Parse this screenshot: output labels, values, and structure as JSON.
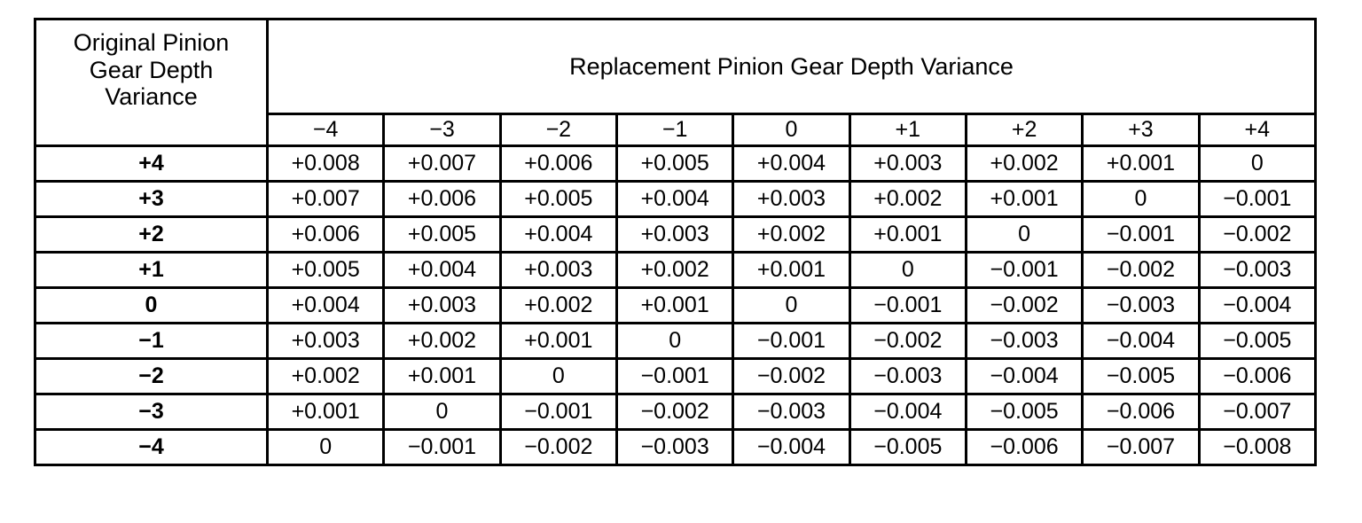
{
  "colors": {
    "ink": "#000000",
    "paper": "#ffffff"
  },
  "table": {
    "row_axis_title": "Original Pinion\nGear Depth\nVariance",
    "col_axis_title": "Replacement Pinion Gear Depth Variance",
    "column_headers": [
      "−4",
      "−3",
      "−2",
      "−1",
      "0",
      "+1",
      "+2",
      "+3",
      "+4"
    ],
    "rows": [
      {
        "header": "+4",
        "cells": [
          "+0.008",
          "+0.007",
          "+0.006",
          "+0.005",
          "+0.004",
          "+0.003",
          "+0.002",
          "+0.001",
          "0"
        ]
      },
      {
        "header": "+3",
        "cells": [
          "+0.007",
          "+0.006",
          "+0.005",
          "+0.004",
          "+0.003",
          "+0.002",
          "+0.001",
          "0",
          "−0.001"
        ]
      },
      {
        "header": "+2",
        "cells": [
          "+0.006",
          "+0.005",
          "+0.004",
          "+0.003",
          "+0.002",
          "+0.001",
          "0",
          "−0.001",
          "−0.002"
        ]
      },
      {
        "header": "+1",
        "cells": [
          "+0.005",
          "+0.004",
          "+0.003",
          "+0.002",
          "+0.001",
          "0",
          "−0.001",
          "−0.002",
          "−0.003"
        ]
      },
      {
        "header": "0",
        "cells": [
          "+0.004",
          "+0.003",
          "+0.002",
          "+0.001",
          "0",
          "−0.001",
          "−0.002",
          "−0.003",
          "−0.004"
        ]
      },
      {
        "header": "−1",
        "cells": [
          "+0.003",
          "+0.002",
          "+0.001",
          "0",
          "−0.001",
          "−0.002",
          "−0.003",
          "−0.004",
          "−0.005"
        ]
      },
      {
        "header": "−2",
        "cells": [
          "+0.002",
          "+0.001",
          "0",
          "−0.001",
          "−0.002",
          "−0.003",
          "−0.004",
          "−0.005",
          "−0.006"
        ]
      },
      {
        "header": "−3",
        "cells": [
          "+0.001",
          "0",
          "−0.001",
          "−0.002",
          "−0.003",
          "−0.004",
          "−0.005",
          "−0.006",
          "−0.007"
        ]
      },
      {
        "header": "−4",
        "cells": [
          "0",
          "−0.001",
          "−0.002",
          "−0.003",
          "−0.004",
          "−0.005",
          "−0.006",
          "−0.007",
          "−0.008"
        ]
      }
    ]
  }
}
